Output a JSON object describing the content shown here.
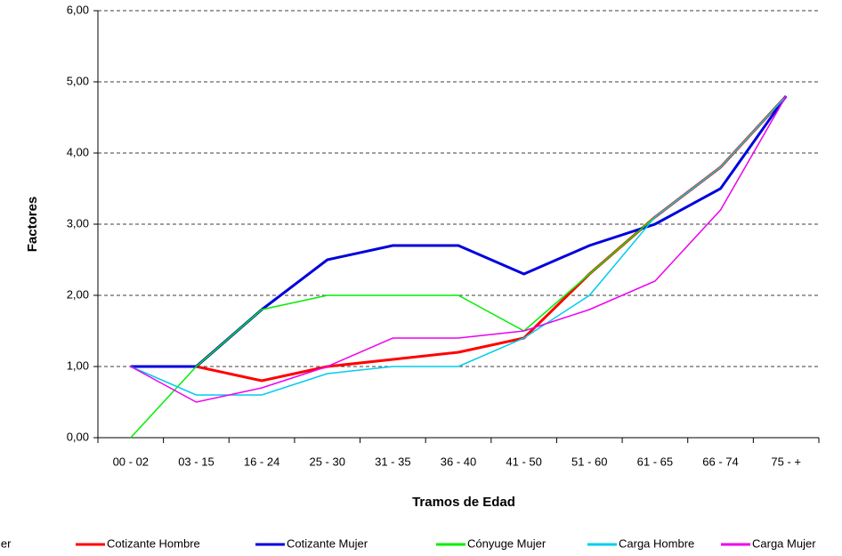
{
  "chart_data": {
    "type": "line",
    "x_label": "Tramos de Edad",
    "y_label": "Factores",
    "categories": [
      "00 - 02",
      "03 - 15",
      "16 - 24",
      "25 - 30",
      "31 - 35",
      "36 - 40",
      "41 - 50",
      "51 - 60",
      "61 - 65",
      "66 - 74",
      "75  -  +"
    ],
    "series": [
      {
        "name": "Cotizante Hombre",
        "color": "#ff0000",
        "width": 3,
        "values": [
          1.0,
          1.0,
          0.8,
          1.0,
          1.1,
          1.2,
          1.4,
          2.3,
          3.1,
          3.8,
          4.8
        ]
      },
      {
        "name": "Cotizante Mujer",
        "color": "#0000dd",
        "width": 3,
        "values": [
          1.0,
          1.0,
          1.8,
          2.5,
          2.7,
          2.7,
          2.3,
          2.7,
          3.0,
          3.5,
          4.8
        ]
      },
      {
        "name": "Cónyuge Mujer",
        "color": "#00ee00",
        "width": 1.5,
        "values": [
          0.0,
          1.0,
          1.8,
          2.0,
          2.0,
          2.0,
          1.5,
          2.3,
          3.1,
          3.8,
          4.8
        ]
      },
      {
        "name": "Carga Hombre",
        "color": "#00ccee",
        "width": 1.5,
        "values": [
          1.0,
          0.6,
          0.6,
          0.9,
          1.0,
          1.0,
          1.4,
          2.0,
          3.1,
          3.8,
          4.8
        ]
      },
      {
        "name": "Carga Mujer",
        "color": "#ee00ee",
        "width": 1.5,
        "values": [
          1.0,
          0.5,
          0.7,
          1.0,
          1.4,
          1.4,
          1.5,
          1.8,
          2.2,
          3.2,
          4.8
        ]
      }
    ],
    "ylim": [
      0,
      6
    ],
    "yticks": [
      {
        "value": 0,
        "label": "0,00"
      },
      {
        "value": 1,
        "label": "1,00"
      },
      {
        "value": 2,
        "label": "2,00"
      },
      {
        "value": 3,
        "label": "3,00"
      },
      {
        "value": 4,
        "label": "4,00"
      },
      {
        "value": 5,
        "label": "5,00"
      },
      {
        "value": 6,
        "label": "6,00"
      }
    ],
    "grid": true,
    "legend": "bottom",
    "clipped_legend_text": "jer"
  }
}
